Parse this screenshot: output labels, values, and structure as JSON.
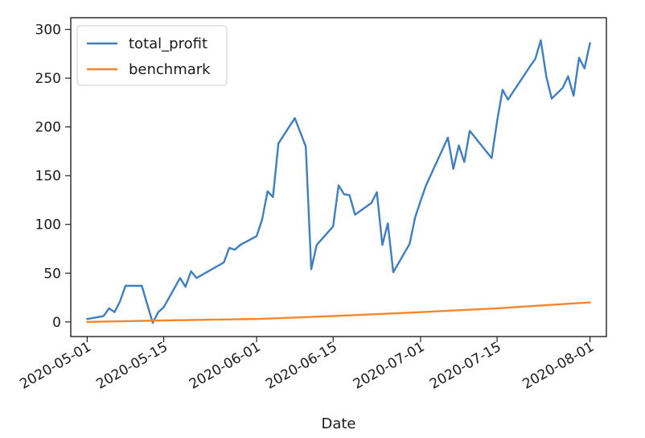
{
  "chart_data": {
    "type": "line",
    "title": "",
    "xlabel": "Date",
    "ylabel": "",
    "ylim": [
      -15,
      312
    ],
    "xlim": [
      "2020-04-28",
      "2020-08-04"
    ],
    "grid": false,
    "legend_placement": "upper-left",
    "x_ticks": [
      "2020-05-01",
      "2020-05-15",
      "2020-06-01",
      "2020-06-15",
      "2020-07-01",
      "2020-07-15",
      "2020-08-01"
    ],
    "y_ticks": [
      0,
      50,
      100,
      150,
      200,
      250,
      300
    ],
    "colors": {
      "total_profit": "#3e7fbf",
      "benchmark": "#f5862a",
      "axes": "#222222"
    },
    "series": [
      {
        "name": "total_profit",
        "points": [
          [
            "2020-05-01",
            3
          ],
          [
            "2020-05-03",
            5
          ],
          [
            "2020-05-04",
            6
          ],
          [
            "2020-05-05",
            14
          ],
          [
            "2020-05-06",
            10
          ],
          [
            "2020-05-07",
            21
          ],
          [
            "2020-05-08",
            37
          ],
          [
            "2020-05-11",
            37
          ],
          [
            "2020-05-12",
            18
          ],
          [
            "2020-05-13",
            -1
          ],
          [
            "2020-05-14",
            10
          ],
          [
            "2020-05-15",
            15
          ],
          [
            "2020-05-18",
            45
          ],
          [
            "2020-05-19",
            36
          ],
          [
            "2020-05-20",
            52
          ],
          [
            "2020-05-21",
            45
          ],
          [
            "2020-05-26",
            61
          ],
          [
            "2020-05-27",
            76
          ],
          [
            "2020-05-28",
            74
          ],
          [
            "2020-05-29",
            79
          ],
          [
            "2020-06-01",
            88
          ],
          [
            "2020-06-02",
            105
          ],
          [
            "2020-06-03",
            134
          ],
          [
            "2020-06-04",
            128
          ],
          [
            "2020-06-05",
            183
          ],
          [
            "2020-06-08",
            209
          ],
          [
            "2020-06-10",
            180
          ],
          [
            "2020-06-11",
            54
          ],
          [
            "2020-06-12",
            79
          ],
          [
            "2020-06-15",
            98
          ],
          [
            "2020-06-16",
            140
          ],
          [
            "2020-06-17",
            131
          ],
          [
            "2020-06-18",
            130
          ],
          [
            "2020-06-19",
            110
          ],
          [
            "2020-06-22",
            122
          ],
          [
            "2020-06-23",
            133
          ],
          [
            "2020-06-24",
            79
          ],
          [
            "2020-06-25",
            101
          ],
          [
            "2020-06-26",
            51
          ],
          [
            "2020-06-29",
            80
          ],
          [
            "2020-06-30",
            107
          ],
          [
            "2020-07-01",
            124
          ],
          [
            "2020-07-02",
            140
          ],
          [
            "2020-07-06",
            189
          ],
          [
            "2020-07-07",
            157
          ],
          [
            "2020-07-08",
            181
          ],
          [
            "2020-07-09",
            164
          ],
          [
            "2020-07-10",
            196
          ],
          [
            "2020-07-14",
            168
          ],
          [
            "2020-07-15",
            206
          ],
          [
            "2020-07-16",
            238
          ],
          [
            "2020-07-17",
            228
          ],
          [
            "2020-07-21",
            262
          ],
          [
            "2020-07-22",
            270
          ],
          [
            "2020-07-23",
            289
          ],
          [
            "2020-07-24",
            252
          ],
          [
            "2020-07-25",
            229
          ],
          [
            "2020-07-27",
            240
          ],
          [
            "2020-07-28",
            252
          ],
          [
            "2020-07-29",
            232
          ],
          [
            "2020-07-30",
            271
          ],
          [
            "2020-07-31",
            260
          ],
          [
            "2020-08-01",
            286
          ]
        ]
      },
      {
        "name": "benchmark",
        "points": [
          [
            "2020-05-01",
            0
          ],
          [
            "2020-05-15",
            1.5
          ],
          [
            "2020-06-01",
            3
          ],
          [
            "2020-06-15",
            6
          ],
          [
            "2020-07-01",
            10
          ],
          [
            "2020-07-15",
            14
          ],
          [
            "2020-08-01",
            20
          ]
        ]
      }
    ]
  }
}
